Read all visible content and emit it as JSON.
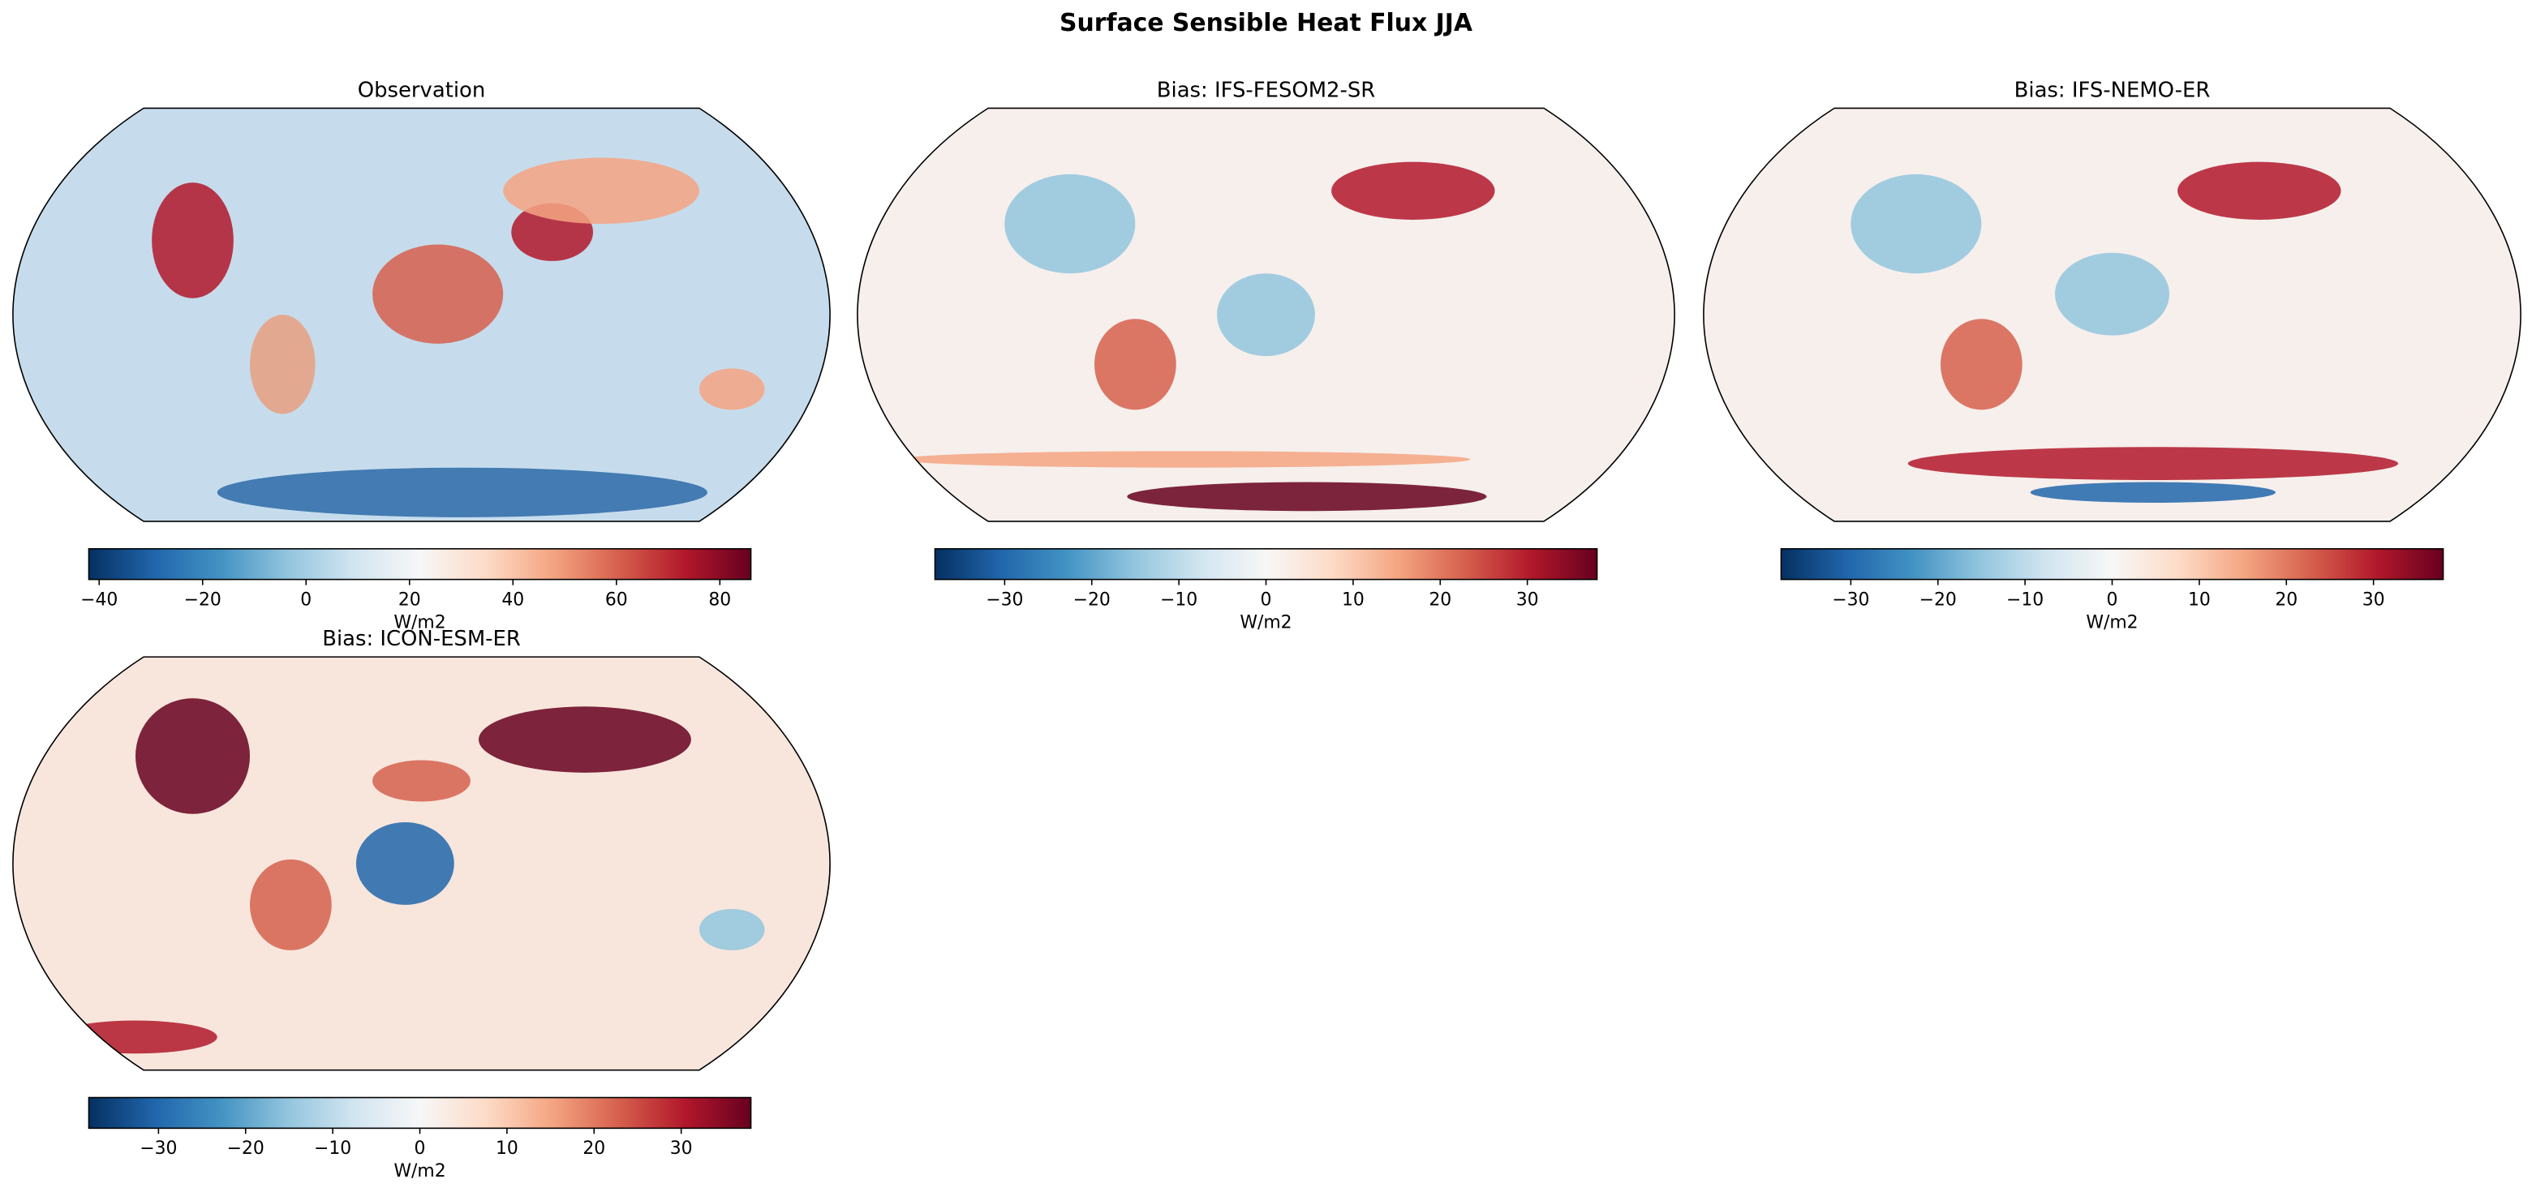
{
  "title": "Surface Sensible Heat Flux JJA",
  "panels": [
    {
      "title": "Observation",
      "colorbar": {
        "label": "W/m2",
        "lim": [
          -42,
          86
        ],
        "ticks": [
          {
            "value": -40,
            "label": "−40"
          },
          {
            "value": -20,
            "label": "−20"
          },
          0,
          20,
          40,
          60,
          80
        ]
      }
    },
    {
      "title": "Bias: IFS-FESOM2-SR",
      "colorbar": {
        "label": "W/m2",
        "lim": [
          -38,
          38
        ],
        "ticks": [
          {
            "value": -30,
            "label": "−30"
          },
          {
            "value": -20,
            "label": "−20"
          },
          {
            "value": -10,
            "label": "−10"
          },
          0,
          10,
          20,
          30
        ]
      }
    },
    {
      "title": "Bias: IFS-NEMO-ER",
      "colorbar": {
        "label": "W/m2",
        "lim": [
          -38,
          38
        ],
        "ticks": [
          {
            "value": -30,
            "label": "−30"
          },
          {
            "value": -20,
            "label": "−20"
          },
          {
            "value": -10,
            "label": "−10"
          },
          0,
          10,
          20,
          30
        ]
      }
    },
    {
      "title": "Bias: ICON-ESM-ER",
      "colorbar": {
        "label": "W/m2",
        "lim": [
          -38,
          38
        ],
        "ticks": [
          {
            "value": -30,
            "label": "−30"
          },
          {
            "value": -20,
            "label": "−20"
          },
          {
            "value": -10,
            "label": "−10"
          },
          0,
          10,
          20,
          30
        ]
      }
    }
  ]
}
